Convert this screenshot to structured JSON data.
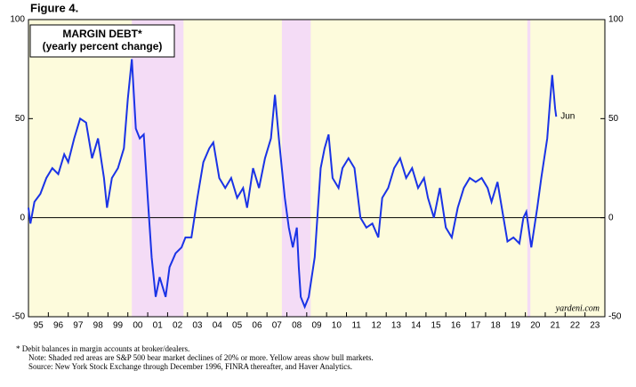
{
  "chart_data": {
    "type": "line",
    "figure_label": "Figure 4.",
    "title": "MARGIN DEBT*",
    "subtitle": "(yearly percent change)",
    "source_label": "yardeni.com",
    "end_label": "Jun",
    "footnotes": [
      "*   Debit balances in margin accounts at broker/dealers.",
      "Note: Shaded red areas are S&P 500 bear market declines of 20% or more. Yellow areas show bull markets.",
      "Source: New York Stock Exchange through December 1996, FINRA thereafter, and Haver Analytics."
    ],
    "bear_markets": [
      [
        2000.2,
        2002.8
      ],
      [
        2007.75,
        2009.2
      ],
      [
        2020.1,
        2020.25
      ]
    ],
    "bull_color": "#fdfbdc",
    "bear_color": "#f4dcf6",
    "xlim": [
      1995,
      2024
    ],
    "ylim": [
      -50,
      100
    ],
    "yticks": [
      -50,
      0,
      50,
      100
    ],
    "xticks": [
      {
        "value": 1995,
        "label": "95"
      },
      {
        "value": 1996,
        "label": "96"
      },
      {
        "value": 1997,
        "label": "97"
      },
      {
        "value": 1998,
        "label": "98"
      },
      {
        "value": 1999,
        "label": "99"
      },
      {
        "value": 2000,
        "label": "00"
      },
      {
        "value": 2001,
        "label": "01"
      },
      {
        "value": 2002,
        "label": "02"
      },
      {
        "value": 2003,
        "label": "03"
      },
      {
        "value": 2004,
        "label": "04"
      },
      {
        "value": 2005,
        "label": "05"
      },
      {
        "value": 2006,
        "label": "06"
      },
      {
        "value": 2007,
        "label": "07"
      },
      {
        "value": 2008,
        "label": "08"
      },
      {
        "value": 2009,
        "label": "09"
      },
      {
        "value": 2010,
        "label": "10"
      },
      {
        "value": 2011,
        "label": "11"
      },
      {
        "value": 2012,
        "label": "12"
      },
      {
        "value": 2013,
        "label": "13"
      },
      {
        "value": 2014,
        "label": "14"
      },
      {
        "value": 2015,
        "label": "15"
      },
      {
        "value": 2016,
        "label": "16"
      },
      {
        "value": 2017,
        "label": "17"
      },
      {
        "value": 2018,
        "label": "18"
      },
      {
        "value": 2019,
        "label": "19"
      },
      {
        "value": 2020,
        "label": "20"
      },
      {
        "value": 2021,
        "label": "21"
      },
      {
        "value": 2022,
        "label": "22"
      },
      {
        "value": 2023,
        "label": "23"
      }
    ],
    "x": [
      1995.0,
      1995.1,
      1995.3,
      1995.6,
      1995.9,
      1996.2,
      1996.5,
      1996.8,
      1997.0,
      1997.3,
      1997.6,
      1997.9,
      1998.2,
      1998.5,
      1998.8,
      1998.95,
      1999.2,
      1999.5,
      1999.8,
      2000.0,
      2000.2,
      2000.4,
      2000.6,
      2000.8,
      2001.0,
      2001.2,
      2001.4,
      2001.6,
      2001.9,
      2002.1,
      2002.4,
      2002.7,
      2002.9,
      2003.2,
      2003.5,
      2003.8,
      2004.1,
      2004.3,
      2004.6,
      2004.9,
      2005.2,
      2005.5,
      2005.8,
      2006.0,
      2006.3,
      2006.6,
      2006.9,
      2007.2,
      2007.4,
      2007.6,
      2007.9,
      2008.1,
      2008.3,
      2008.5,
      2008.6,
      2008.7,
      2008.9,
      2009.1,
      2009.4,
      2009.7,
      2009.9,
      2010.1,
      2010.3,
      2010.6,
      2010.8,
      2011.1,
      2011.4,
      2011.7,
      2012.0,
      2012.3,
      2012.6,
      2012.8,
      2013.1,
      2013.4,
      2013.7,
      2014.0,
      2014.3,
      2014.6,
      2014.9,
      2015.1,
      2015.4,
      2015.7,
      2016.0,
      2016.3,
      2016.6,
      2016.9,
      2017.2,
      2017.5,
      2017.8,
      2018.1,
      2018.3,
      2018.6,
      2018.9,
      2019.1,
      2019.4,
      2019.7,
      2019.9,
      2020.05,
      2020.3,
      2020.6,
      2020.8,
      2021.1,
      2021.25,
      2021.35,
      2021.5,
      2021.55
    ],
    "series": [
      {
        "color": "#1a33e6",
        "values": [
          5,
          -3,
          8,
          12,
          20,
          25,
          22,
          32,
          28,
          40,
          50,
          48,
          30,
          40,
          20,
          5,
          20,
          25,
          35,
          60,
          80,
          45,
          40,
          42,
          10,
          -20,
          -40,
          -30,
          -40,
          -25,
          -18,
          -15,
          -10,
          -10,
          10,
          28,
          35,
          38,
          20,
          15,
          20,
          10,
          15,
          5,
          25,
          15,
          30,
          40,
          62,
          40,
          10,
          -5,
          -15,
          -5,
          -25,
          -40,
          -45,
          -40,
          -20,
          25,
          35,
          42,
          20,
          15,
          25,
          30,
          25,
          0,
          -5,
          -3,
          -10,
          10,
          15,
          25,
          30,
          20,
          25,
          15,
          20,
          10,
          0,
          15,
          -5,
          -10,
          5,
          15,
          20,
          18,
          20,
          15,
          8,
          18,
          0,
          -12,
          -10,
          -13,
          0,
          3,
          -15,
          5,
          20,
          40,
          60,
          72,
          55,
          51
        ]
      }
    ]
  }
}
